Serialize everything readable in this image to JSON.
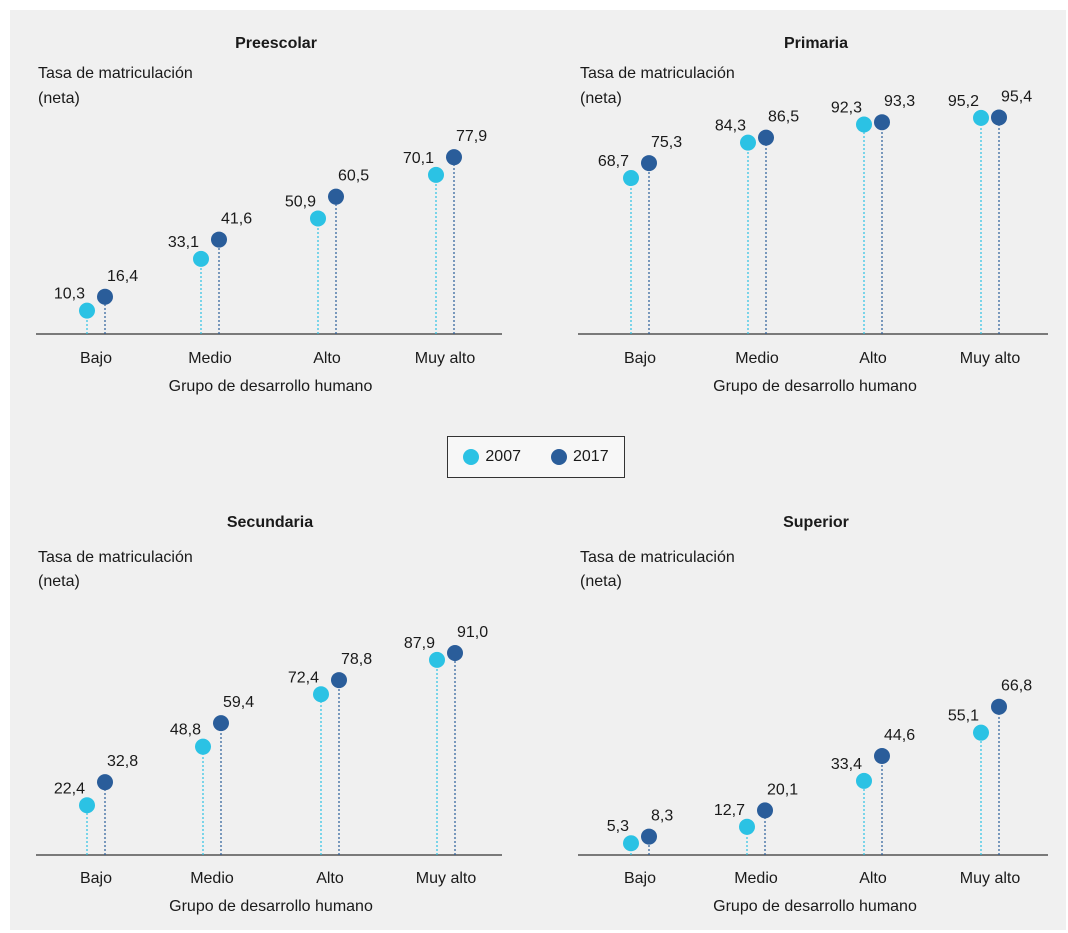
{
  "colors": {
    "series_2007": "#2bc2e4",
    "series_2017": "#2a5d9a",
    "axis": "#333333",
    "panel_bg": "#f0f0f0"
  },
  "legend": {
    "items": [
      {
        "label": "2007",
        "color": "#2bc2e4"
      },
      {
        "label": "2017",
        "color": "#2a5d9a"
      }
    ]
  },
  "chart_data": [
    {
      "type": "scatter",
      "title": "Preescolar",
      "ylabel_line1": "Tasa de matriculación",
      "ylabel_line2": "(neta)",
      "xlabel": "Grupo de desarrollo humano",
      "categories": [
        "Bajo",
        "Medio",
        "Alto",
        "Muy alto"
      ],
      "ylim": [
        0,
        100
      ],
      "series": [
        {
          "name": "2007",
          "values": [
            10.3,
            33.1,
            50.9,
            70.1
          ],
          "labels": [
            "10,3",
            "33,1",
            "50,9",
            "70,1"
          ]
        },
        {
          "name": "2017",
          "values": [
            16.4,
            41.6,
            60.5,
            77.9
          ],
          "labels": [
            "16,4",
            "41,6",
            "60,5",
            "77,9"
          ]
        }
      ]
    },
    {
      "type": "scatter",
      "title": "Primaria",
      "ylabel_line1": "Tasa de matriculación",
      "ylabel_line2": "(neta)",
      "xlabel": "Grupo de desarrollo humano",
      "categories": [
        "Bajo",
        "Medio",
        "Alto",
        "Muy alto"
      ],
      "ylim": [
        0,
        100
      ],
      "series": [
        {
          "name": "2007",
          "values": [
            68.7,
            84.3,
            92.3,
            95.2
          ],
          "labels": [
            "68,7",
            "84,3",
            "92,3",
            "95,2"
          ]
        },
        {
          "name": "2017",
          "values": [
            75.3,
            86.5,
            93.3,
            95.4
          ],
          "labels": [
            "75,3",
            "86,5",
            "93,3",
            "95,4"
          ]
        }
      ]
    },
    {
      "type": "scatter",
      "title": "Secundaria",
      "ylabel_line1": "Tasa de matriculación",
      "ylabel_line2": "(neta)",
      "xlabel": "Grupo de desarrollo humano",
      "categories": [
        "Bajo",
        "Medio",
        "Alto",
        "Muy alto"
      ],
      "ylim": [
        0,
        100
      ],
      "series": [
        {
          "name": "2007",
          "values": [
            22.4,
            48.8,
            72.4,
            87.9
          ],
          "labels": [
            "22,4",
            "48,8",
            "72,4",
            "87,9"
          ]
        },
        {
          "name": "2017",
          "values": [
            32.8,
            59.4,
            78.8,
            91.0
          ],
          "labels": [
            "32,8",
            "59,4",
            "78,8",
            "91,0"
          ]
        }
      ]
    },
    {
      "type": "scatter",
      "title": "Superior",
      "ylabel_line1": "Tasa de matriculación",
      "ylabel_line2": "(neta)",
      "xlabel": "Grupo de desarrollo humano",
      "categories": [
        "Bajo",
        "Medio",
        "Alto",
        "Muy alto"
      ],
      "ylim": [
        0,
        100
      ],
      "series": [
        {
          "name": "2007",
          "values": [
            5.3,
            12.7,
            33.4,
            55.1
          ],
          "labels": [
            "5,3",
            "12,7",
            "33,4",
            "55,1"
          ]
        },
        {
          "name": "2017",
          "values": [
            8.3,
            20.1,
            44.6,
            66.8
          ],
          "labels": [
            "8,3",
            "20,1",
            "44,6",
            "66,8"
          ]
        }
      ]
    }
  ]
}
